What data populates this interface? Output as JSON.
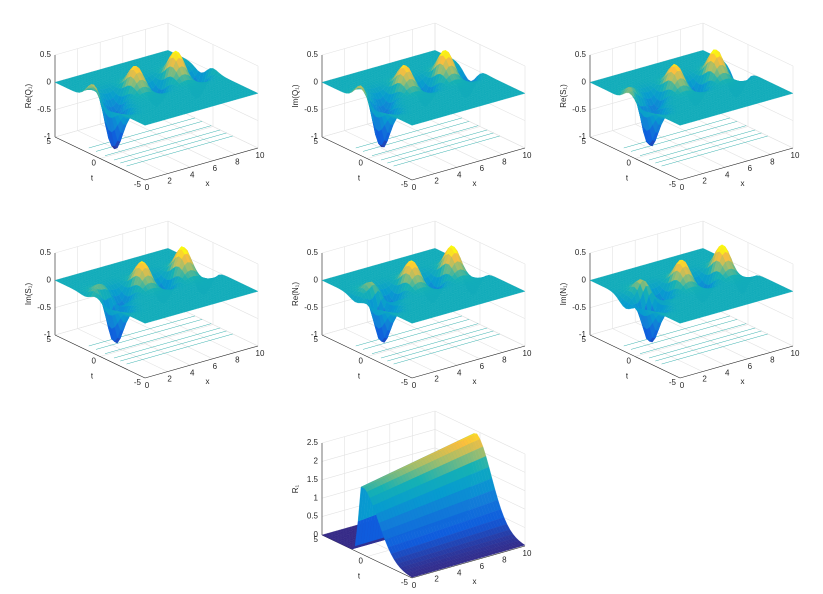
{
  "chart_data": [
    {
      "type": "surface",
      "zlabel": "Re(Q₁)",
      "xlabel": "x",
      "tlabel": "t",
      "xlim": [
        0,
        10
      ],
      "xticks": [
        0,
        2,
        4,
        6,
        8,
        10
      ],
      "tlim": [
        -5,
        5
      ],
      "tticks": [
        -5,
        0,
        5
      ],
      "zlim": [
        -1,
        0.5
      ],
      "zticks": [
        -1,
        -0.5,
        0,
        0.5
      ]
    },
    {
      "type": "surface",
      "zlabel": "Im(Q₁)",
      "xlabel": "x",
      "tlabel": "t",
      "xlim": [
        0,
        10
      ],
      "xticks": [
        0,
        2,
        4,
        6,
        8,
        10
      ],
      "tlim": [
        -5,
        5
      ],
      "tticks": [
        -5,
        0,
        5
      ],
      "zlim": [
        -1,
        0.5
      ],
      "zticks": [
        -1,
        -0.5,
        0,
        0.5
      ]
    },
    {
      "type": "surface",
      "zlabel": "Re(S₁)",
      "xlabel": "x",
      "tlabel": "t",
      "xlim": [
        0,
        10
      ],
      "xticks": [
        0,
        2,
        4,
        6,
        8,
        10
      ],
      "tlim": [
        -5,
        5
      ],
      "tticks": [
        -5,
        0,
        5
      ],
      "zlim": [
        -1,
        0.5
      ],
      "zticks": [
        -1,
        -0.5,
        0,
        0.5
      ]
    },
    {
      "type": "surface",
      "zlabel": "Im(S₁)",
      "xlabel": "x",
      "tlabel": "t",
      "xlim": [
        0,
        10
      ],
      "xticks": [
        0,
        2,
        4,
        6,
        8,
        10
      ],
      "tlim": [
        -5,
        5
      ],
      "tticks": [
        -5,
        0,
        5
      ],
      "zlim": [
        -1,
        0.5
      ],
      "zticks": [
        -1,
        -0.5,
        0,
        0.5
      ]
    },
    {
      "type": "surface",
      "zlabel": "Re(N₁)",
      "xlabel": "x",
      "tlabel": "t",
      "xlim": [
        0,
        10
      ],
      "xticks": [
        0,
        2,
        4,
        6,
        8,
        10
      ],
      "tlim": [
        -5,
        5
      ],
      "tticks": [
        -5,
        0,
        5
      ],
      "zlim": [
        -1,
        0.5
      ],
      "zticks": [
        -1,
        -0.5,
        0,
        0.5
      ]
    },
    {
      "type": "surface",
      "zlabel": "Im(N₁)",
      "xlabel": "x",
      "tlabel": "t",
      "xlim": [
        0,
        10
      ],
      "xticks": [
        0,
        2,
        4,
        6,
        8,
        10
      ],
      "tlim": [
        -5,
        5
      ],
      "tticks": [
        -5,
        0,
        5
      ],
      "zlim": [
        -1,
        0.5
      ],
      "zticks": [
        -1,
        -0.5,
        0,
        0.5
      ]
    },
    {
      "type": "ridge",
      "zlabel": "R₁",
      "xlabel": "x",
      "tlabel": "t",
      "xlim": [
        0,
        10
      ],
      "xticks": [
        0,
        2,
        4,
        6,
        8,
        10
      ],
      "tlim": [
        -5,
        5
      ],
      "tticks": [
        -5,
        0,
        5
      ],
      "zlim": [
        0,
        2.5
      ],
      "zticks": [
        0,
        0.5,
        1,
        1.5,
        2,
        2.5
      ]
    }
  ]
}
